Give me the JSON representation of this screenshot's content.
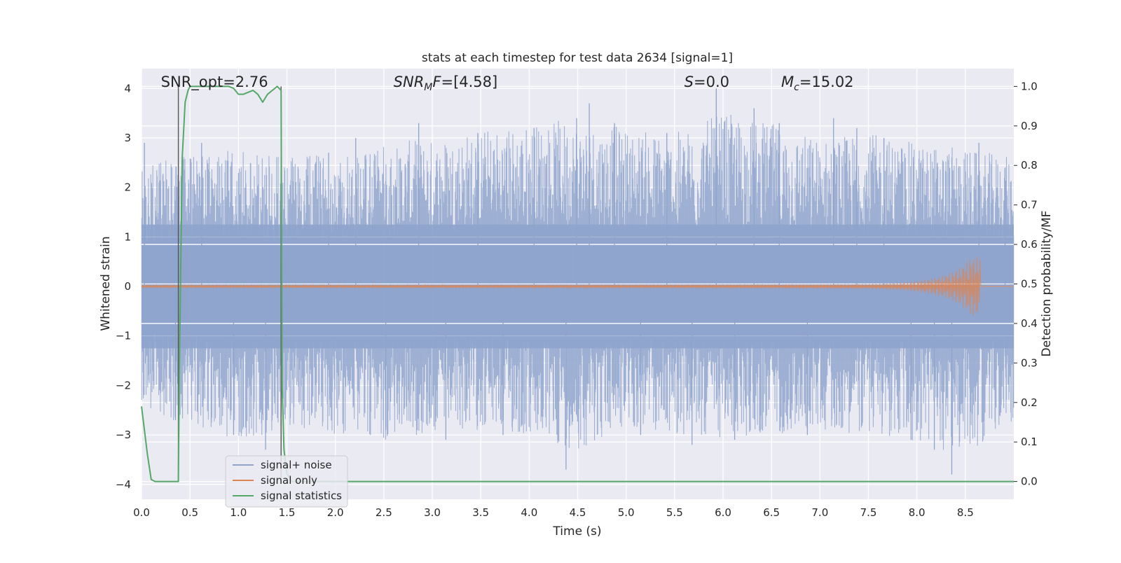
{
  "chart_data": {
    "type": "line",
    "title": "stats at each timestep for test data 2634 [signal=1]",
    "xlabel": "Time (s)",
    "ylabel": "Whitened strain",
    "ylabel_right": "Detection probability/MF",
    "xlim": [
      0.0,
      9.0
    ],
    "ylim": [
      -4.3,
      4.4
    ],
    "ylim_right": [
      -0.045,
      1.045
    ],
    "x_ticks": [
      0.0,
      0.5,
      1.0,
      1.5,
      2.0,
      2.5,
      3.0,
      3.5,
      4.0,
      4.5,
      5.0,
      5.5,
      6.0,
      6.5,
      7.0,
      7.5,
      8.0,
      8.5
    ],
    "x_tick_labels": [
      "0.0",
      "0.5",
      "1.0",
      "1.5",
      "2.0",
      "2.5",
      "3.0",
      "3.5",
      "4.0",
      "4.5",
      "5.0",
      "5.5",
      "6.0",
      "6.5",
      "7.0",
      "7.5",
      "8.0",
      "8.5"
    ],
    "y_ticks": [
      4,
      3,
      2,
      1,
      0,
      -1,
      -2,
      -3,
      -4
    ],
    "y_tick_labels": [
      "4",
      "3",
      "2",
      "1",
      "0",
      "−1",
      "−2",
      "−3",
      "−4"
    ],
    "y_right_ticks": [
      1.0,
      0.9,
      0.8,
      0.7,
      0.6,
      0.5,
      0.4,
      0.3,
      0.2,
      0.1,
      0.0
    ],
    "y_right_tick_labels": [
      "1.0",
      "0.9",
      "0.8",
      "0.7",
      "0.6",
      "0.5",
      "0.4",
      "0.3",
      "0.2",
      "0.1",
      "0.0"
    ],
    "grid": true,
    "annotations": [
      {
        "label": "SNR_opt",
        "value": "=2.76",
        "x": 0.2,
        "italic": false
      },
      {
        "label": "SNR",
        "sub": "M",
        "suffix": "F",
        "value": "=[4.58]",
        "x": 2.6,
        "italic": true
      },
      {
        "label": "S",
        "value": "=0.0",
        "x": 5.6,
        "italic": true
      },
      {
        "label": "M",
        "sub": "c",
        "value": "=15.02",
        "x": 6.6,
        "italic": true
      }
    ],
    "vertical_markers": [
      0.38,
      1.44
    ],
    "noise_envelope": {
      "x": [
        0.0,
        0.5,
        1.0,
        1.5,
        2.0,
        2.5,
        3.0,
        3.5,
        4.0,
        4.5,
        5.0,
        5.5,
        6.0,
        6.5,
        7.0,
        7.5,
        8.0,
        8.5,
        9.0
      ],
      "upper": [
        2.4,
        2.7,
        2.8,
        2.6,
        2.7,
        2.9,
        3.0,
        3.2,
        3.3,
        3.4,
        3.2,
        3.1,
        3.5,
        3.3,
        3.0,
        3.1,
        2.9,
        2.8,
        2.6
      ],
      "lower": [
        -2.6,
        -2.8,
        -3.1,
        -2.9,
        -3.0,
        -3.1,
        -3.0,
        -2.9,
        -3.1,
        -3.3,
        -2.9,
        -3.0,
        -3.1,
        -3.0,
        -2.9,
        -3.0,
        -3.2,
        -3.4,
        -2.7
      ]
    },
    "noise_spikes": {
      "x": [
        0.03,
        0.35,
        0.62,
        0.95,
        1.28,
        1.93,
        2.21,
        2.52,
        2.86,
        3.14,
        3.47,
        3.73,
        4.05,
        4.38,
        4.49,
        4.62,
        4.88,
        5.15,
        5.42,
        5.68,
        5.93,
        6.12,
        6.32,
        6.58,
        6.87,
        7.14,
        7.38,
        7.66,
        7.94,
        8.18,
        8.36,
        8.64,
        8.91
      ],
      "values": [
        2.9,
        -2.7,
        2.9,
        -3.0,
        -3.3,
        2.7,
        3.0,
        -2.9,
        3.3,
        -3.1,
        3.1,
        -3.0,
        3.2,
        -3.7,
        3.4,
        3.7,
        3.3,
        -3.0,
        3.1,
        -3.2,
        4.0,
        -3.1,
        3.6,
        3.3,
        -3.0,
        3.4,
        3.2,
        3.0,
        -3.1,
        -3.3,
        -3.8,
        2.9,
        2.4
      ]
    },
    "signal_only": {
      "start": 0.0,
      "end": 8.65,
      "peak_time": 8.63,
      "peak_amplitude": 0.6,
      "base_amplitude": 0.03
    },
    "series": [
      {
        "name": "signal+ noise",
        "color": "#8fa4cc"
      },
      {
        "name": "signal only",
        "color": "#dd8452"
      },
      {
        "name": "signal statistics",
        "color": "#55a868",
        "axis": "right",
        "x": [
          0.0,
          0.06,
          0.1,
          0.14,
          0.2,
          0.3,
          0.38,
          0.39,
          0.42,
          0.45,
          0.48,
          0.5,
          0.7,
          0.9,
          0.95,
          1.0,
          1.05,
          1.1,
          1.15,
          1.2,
          1.25,
          1.3,
          1.35,
          1.4,
          1.44,
          1.45,
          1.47,
          1.5,
          1.55,
          9.0
        ],
        "y": [
          0.19,
          0.07,
          0.005,
          0.0,
          0.0,
          0.0,
          0.0,
          0.28,
          0.82,
          0.96,
          0.99,
          1.0,
          1.0,
          1.0,
          0.995,
          0.98,
          0.98,
          0.985,
          0.99,
          0.98,
          0.96,
          0.98,
          0.99,
          1.0,
          0.99,
          0.25,
          0.08,
          0.02,
          0.0,
          0.0
        ]
      }
    ],
    "legend_position": "lower-left"
  }
}
